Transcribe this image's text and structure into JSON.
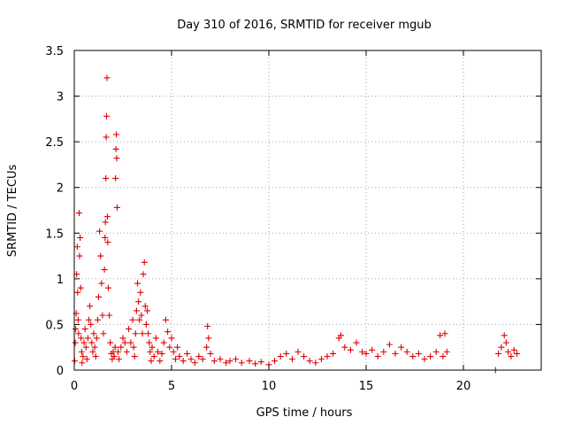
{
  "chart_data": {
    "type": "scatter",
    "title": "Day 310 of 2016, SRMTID for receiver mgub",
    "xlabel": "GPS time / hours",
    "ylabel": "SRMTID / TECUs",
    "xlim": [
      0,
      24
    ],
    "ylim": [
      0,
      3.5
    ],
    "xticks": [
      0,
      5,
      10,
      15,
      20
    ],
    "xtick_labels": [
      "0",
      "5",
      "10",
      "15",
      "20"
    ],
    "yticks": [
      0,
      0.5,
      1,
      1.5,
      2,
      2.5,
      3,
      3.5
    ],
    "ytick_labels": [
      "0",
      "0.5",
      "1",
      "1.5",
      "2",
      "2.5",
      "3",
      "3.5"
    ],
    "grid": true,
    "series": [
      {
        "name": "SRMTID",
        "marker": "+",
        "color": "#e00000",
        "points": [
          [
            0.02,
            0.1
          ],
          [
            0.05,
            0.3
          ],
          [
            0.07,
            0.45
          ],
          [
            0.1,
            0.62
          ],
          [
            0.12,
            1.05
          ],
          [
            0.15,
            1.35
          ],
          [
            0.17,
            0.85
          ],
          [
            0.2,
            0.55
          ],
          [
            0.22,
            0.4
          ],
          [
            0.25,
            1.72
          ],
          [
            0.27,
            1.25
          ],
          [
            0.3,
            1.45
          ],
          [
            0.33,
            0.9
          ],
          [
            0.35,
            0.35
          ],
          [
            0.38,
            0.2
          ],
          [
            0.4,
            0.08
          ],
          [
            0.45,
            0.15
          ],
          [
            0.5,
            0.3
          ],
          [
            0.55,
            0.45
          ],
          [
            0.6,
            0.25
          ],
          [
            0.65,
            0.12
          ],
          [
            0.7,
            0.35
          ],
          [
            0.75,
            0.55
          ],
          [
            0.8,
            0.7
          ],
          [
            0.85,
            0.5
          ],
          [
            0.9,
            0.3
          ],
          [
            0.95,
            0.2
          ],
          [
            1.0,
            0.4
          ],
          [
            1.05,
            0.25
          ],
          [
            1.1,
            0.15
          ],
          [
            1.15,
            0.35
          ],
          [
            1.2,
            0.55
          ],
          [
            1.25,
            0.8
          ],
          [
            1.3,
            1.52
          ],
          [
            1.35,
            1.25
          ],
          [
            1.4,
            0.95
          ],
          [
            1.45,
            0.6
          ],
          [
            1.5,
            0.4
          ],
          [
            1.55,
            1.1
          ],
          [
            1.58,
            1.45
          ],
          [
            1.6,
            1.62
          ],
          [
            1.62,
            2.1
          ],
          [
            1.64,
            2.55
          ],
          [
            1.66,
            2.78
          ],
          [
            1.68,
            3.2
          ],
          [
            1.7,
            1.68
          ],
          [
            1.72,
            1.4
          ],
          [
            1.75,
            0.9
          ],
          [
            1.8,
            0.6
          ],
          [
            1.85,
            0.3
          ],
          [
            1.9,
            0.18
          ],
          [
            1.95,
            0.12
          ],
          [
            2.0,
            0.2
          ],
          [
            2.05,
            0.15
          ],
          [
            2.1,
            0.25
          ],
          [
            2.12,
            2.1
          ],
          [
            2.14,
            2.42
          ],
          [
            2.16,
            2.58
          ],
          [
            2.18,
            2.32
          ],
          [
            2.2,
            1.78
          ],
          [
            2.25,
            0.2
          ],
          [
            2.3,
            0.12
          ],
          [
            2.4,
            0.25
          ],
          [
            2.5,
            0.35
          ],
          [
            2.6,
            0.3
          ],
          [
            2.7,
            0.2
          ],
          [
            2.8,
            0.45
          ],
          [
            2.9,
            0.3
          ],
          [
            3.0,
            0.55
          ],
          [
            3.05,
            0.25
          ],
          [
            3.1,
            0.15
          ],
          [
            3.15,
            0.4
          ],
          [
            3.2,
            0.65
          ],
          [
            3.25,
            0.95
          ],
          [
            3.3,
            0.75
          ],
          [
            3.35,
            0.55
          ],
          [
            3.4,
            0.85
          ],
          [
            3.45,
            0.6
          ],
          [
            3.5,
            0.4
          ],
          [
            3.55,
            1.05
          ],
          [
            3.6,
            1.18
          ],
          [
            3.65,
            0.7
          ],
          [
            3.7,
            0.5
          ],
          [
            3.75,
            0.65
          ],
          [
            3.8,
            0.4
          ],
          [
            3.85,
            0.3
          ],
          [
            3.9,
            0.2
          ],
          [
            3.95,
            0.1
          ],
          [
            4.0,
            0.25
          ],
          [
            4.1,
            0.15
          ],
          [
            4.2,
            0.35
          ],
          [
            4.3,
            0.2
          ],
          [
            4.4,
            0.1
          ],
          [
            4.5,
            0.18
          ],
          [
            4.6,
            0.3
          ],
          [
            4.7,
            0.55
          ],
          [
            4.8,
            0.42
          ],
          [
            4.9,
            0.25
          ],
          [
            5.0,
            0.35
          ],
          [
            5.1,
            0.2
          ],
          [
            5.2,
            0.12
          ],
          [
            5.3,
            0.25
          ],
          [
            5.4,
            0.15
          ],
          [
            5.6,
            0.1
          ],
          [
            5.8,
            0.18
          ],
          [
            6.0,
            0.12
          ],
          [
            6.2,
            0.08
          ],
          [
            6.4,
            0.15
          ],
          [
            6.6,
            0.12
          ],
          [
            6.8,
            0.25
          ],
          [
            6.85,
            0.48
          ],
          [
            6.9,
            0.35
          ],
          [
            7.0,
            0.18
          ],
          [
            7.2,
            0.1
          ],
          [
            7.5,
            0.12
          ],
          [
            7.8,
            0.08
          ],
          [
            8.0,
            0.1
          ],
          [
            8.3,
            0.12
          ],
          [
            8.6,
            0.08
          ],
          [
            9.0,
            0.1
          ],
          [
            9.3,
            0.07
          ],
          [
            9.6,
            0.09
          ],
          [
            10.0,
            0.06
          ],
          [
            10.3,
            0.1
          ],
          [
            10.6,
            0.15
          ],
          [
            10.9,
            0.18
          ],
          [
            11.2,
            0.12
          ],
          [
            11.5,
            0.2
          ],
          [
            11.8,
            0.15
          ],
          [
            12.1,
            0.1
          ],
          [
            12.4,
            0.08
          ],
          [
            12.7,
            0.12
          ],
          [
            13.0,
            0.15
          ],
          [
            13.3,
            0.18
          ],
          [
            13.6,
            0.35
          ],
          [
            13.7,
            0.38
          ],
          [
            13.9,
            0.25
          ],
          [
            14.2,
            0.22
          ],
          [
            14.5,
            0.3
          ],
          [
            14.8,
            0.2
          ],
          [
            15.0,
            0.18
          ],
          [
            15.3,
            0.22
          ],
          [
            15.6,
            0.15
          ],
          [
            15.9,
            0.2
          ],
          [
            16.2,
            0.28
          ],
          [
            16.5,
            0.18
          ],
          [
            16.8,
            0.25
          ],
          [
            17.1,
            0.2
          ],
          [
            17.4,
            0.15
          ],
          [
            17.7,
            0.18
          ],
          [
            18.0,
            0.12
          ],
          [
            18.3,
            0.15
          ],
          [
            18.6,
            0.2
          ],
          [
            18.8,
            0.38
          ],
          [
            18.95,
            0.15
          ],
          [
            19.05,
            0.4
          ],
          [
            19.15,
            0.2
          ],
          [
            21.65,
            0.0
          ],
          [
            21.8,
            0.18
          ],
          [
            21.95,
            0.25
          ],
          [
            22.1,
            0.38
          ],
          [
            22.2,
            0.3
          ],
          [
            22.3,
            0.2
          ],
          [
            22.45,
            0.15
          ],
          [
            22.6,
            0.22
          ],
          [
            22.75,
            0.18
          ]
        ]
      }
    ]
  }
}
